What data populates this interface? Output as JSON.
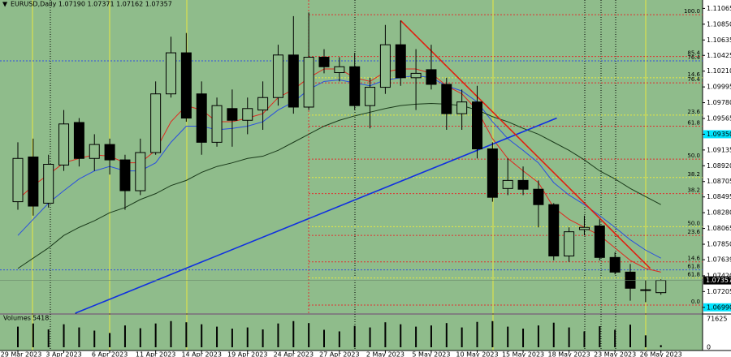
{
  "chart_data": {
    "type": "candlestick",
    "header": "EURUSD,Daily  1.07190 1.07371 1.07162 1.07357",
    "categories": [
      "29 Mar 2023",
      null,
      null,
      "3 Apr 2023",
      null,
      null,
      "6 Apr 2023",
      null,
      null,
      "11 Apr 2023",
      null,
      null,
      "14 Apr 2023",
      null,
      null,
      "19 Apr 2023",
      null,
      null,
      "24 Apr 2023",
      null,
      null,
      "27 Apr 2023",
      null,
      null,
      "2 May 2023",
      null,
      null,
      "5 May 2023",
      null,
      null,
      "10 May 2023",
      null,
      null,
      "15 May 2023",
      null,
      null,
      "18 May 2023",
      null,
      null,
      "23 May 2023",
      null,
      null,
      "26 May 2023"
    ],
    "open": [
      1.0843,
      1.0904,
      1.0841,
      1.0893,
      1.0951,
      1.0902,
      1.0921,
      1.09,
      1.0858,
      1.091,
      1.099,
      1.1046,
      1.099,
      1.0924,
      1.097,
      1.0954,
      1.0968,
      1.0985,
      1.1043,
      1.0972,
      1.104,
      1.1019,
      1.1027,
      1.0974,
      1.0999,
      1.1057,
      1.1012,
      1.1023,
      1.1003,
      1.0963,
      1.0979,
      1.0915,
      1.0861,
      1.0872,
      1.086,
      1.0839,
      1.0769,
      1.0805,
      1.081,
      1.0767,
      1.0747,
      1.0723,
      1.0719
    ],
    "high": [
      1.0924,
      1.0929,
      1.0907,
      1.0968,
      1.0957,
      1.0935,
      1.0929,
      1.0907,
      1.0929,
      1.1007,
      1.1068,
      1.1073,
      1.1007,
      1.0985,
      1.0996,
      1.0985,
      1.1007,
      1.1057,
      1.1096,
      1.1101,
      1.1051,
      1.104,
      1.1046,
      1.1012,
      1.1084,
      1.109,
      1.1051,
      1.1057,
      1.1012,
      1.0996,
      1.1001,
      1.0924,
      1.0902,
      1.0891,
      1.0872,
      1.0841,
      1.0808,
      1.0824,
      1.0819,
      1.0774,
      1.0758,
      1.0736,
      1.07371
    ],
    "low": [
      1.0832,
      1.0824,
      1.0835,
      1.0885,
      1.0891,
      1.0885,
      1.088,
      1.0832,
      1.0852,
      1.0907,
      1.0985,
      1.0952,
      1.0907,
      1.0918,
      1.0918,
      1.0935,
      1.0941,
      1.0974,
      1.0963,
      1.0968,
      1.1018,
      1.1007,
      1.0968,
      1.0943,
      1.099,
      1.1001,
      1.0968,
      1.0996,
      1.0941,
      1.0941,
      1.0902,
      1.0843,
      1.0852,
      1.0852,
      1.0808,
      1.0763,
      1.0761,
      1.0797,
      1.0763,
      1.0744,
      1.0708,
      1.0706,
      1.07162
    ],
    "close": [
      1.0902,
      1.0837,
      1.0894,
      1.0949,
      1.0902,
      1.0921,
      1.09,
      1.0858,
      1.091,
      1.099,
      1.1046,
      1.0957,
      1.0924,
      1.0974,
      1.0954,
      1.097,
      1.0985,
      1.1043,
      1.0972,
      1.104,
      1.1027,
      1.1027,
      1.0974,
      1.0999,
      1.1057,
      1.1012,
      1.1018,
      1.1003,
      1.0963,
      1.0979,
      1.0915,
      1.0849,
      1.0872,
      1.086,
      1.0839,
      1.0769,
      1.0802,
      1.0808,
      1.0767,
      1.0747,
      1.0725,
      1.0722,
      1.07357
    ],
    "bull_color": "#8fbc8b",
    "bear_color": "#000000",
    "series": [
      {
        "color": "#e0281e",
        "values": [
          1.0846,
          1.0865,
          1.088,
          1.0896,
          1.0902,
          1.0907,
          1.0905,
          1.0896,
          1.0896,
          1.0913,
          1.0952,
          1.0974,
          1.0968,
          1.0952,
          1.0952,
          1.0957,
          1.0963,
          1.0985,
          1.0996,
          1.1012,
          1.1024,
          1.1024,
          1.1012,
          1.1007,
          1.102,
          1.1024,
          1.1024,
          1.1018,
          1.1001,
          1.099,
          1.0968,
          1.0929,
          1.0902,
          1.0885,
          1.0869,
          1.0835,
          1.0819,
          1.0808,
          1.0797,
          1.078,
          1.0763,
          1.0752,
          1.0747
        ]
      },
      {
        "color": "#2a4fe0",
        "values": [
          1.0797,
          1.0819,
          1.0841,
          1.0858,
          1.0874,
          1.0885,
          1.0891,
          1.0885,
          1.0885,
          1.0896,
          1.0924,
          1.0946,
          1.0946,
          1.0941,
          1.0943,
          1.0946,
          1.0952,
          1.0968,
          1.0979,
          1.0996,
          1.1007,
          1.1009,
          1.1005,
          1.1001,
          1.1009,
          1.1012,
          1.1015,
          1.1012,
          1.1001,
          1.0994,
          1.0979,
          1.0952,
          1.0929,
          1.0913,
          1.0896,
          1.0869,
          1.0852,
          1.0839,
          1.0824,
          1.0808,
          1.0791,
          1.0777,
          1.0766
        ]
      },
      {
        "color": "#1a3a1a",
        "values": [
          1.0752,
          1.0766,
          1.078,
          1.0797,
          1.0808,
          1.0817,
          1.0828,
          1.0835,
          1.0846,
          1.0854,
          1.0865,
          1.0872,
          1.0883,
          1.0891,
          1.0896,
          1.0902,
          1.0905,
          1.0913,
          1.0924,
          1.0935,
          1.0946,
          1.0954,
          1.096,
          1.0965,
          1.097,
          1.0974,
          1.0976,
          1.0977,
          1.0976,
          1.0974,
          1.0968,
          1.0959,
          1.0952,
          1.0943,
          1.0935,
          1.0924,
          1.0913,
          1.09,
          1.0885,
          1.0874,
          1.0861,
          1.085,
          1.0839
        ]
      }
    ],
    "trendlines": [
      {
        "color": "#1030e0",
        "x": [
          3.75,
          35.2
        ],
        "y": [
          1.0691,
          1.0957
        ]
      },
      {
        "color": "#e02010",
        "x": [
          25,
          41.3
        ],
        "y": [
          1.109,
          1.0752
        ]
      }
    ],
    "levels": [
      {
        "label": "100.0",
        "value": 1.1098,
        "color": "#e03030"
      },
      {
        "label": "85.4",
        "value": 1.1041,
        "color": "#e03030"
      },
      {
        "label": "76.4",
        "value": 1.1035,
        "color": "#3050e0"
      },
      {
        "label": "14.6",
        "value": 1.1012,
        "color": "#e8e840"
      },
      {
        "label": "76.4",
        "value": 1.1005,
        "color": "#e03030"
      },
      {
        "label": "23.6",
        "value": 1.0961,
        "color": "#e8e840"
      },
      {
        "label": "61.8",
        "value": 1.0946,
        "color": "#e03030"
      },
      {
        "label": "50.0",
        "value": 1.0901,
        "color": "#e03030"
      },
      {
        "label": "38.2",
        "value": 1.0876,
        "color": "#e8e840"
      },
      {
        "label": "38.2",
        "value": 1.0854,
        "color": "#e03030"
      },
      {
        "label": "50.0",
        "value": 1.0809,
        "color": "#e8e840"
      },
      {
        "label": "23.6",
        "value": 1.0797,
        "color": "#e03030"
      },
      {
        "label": "14.6",
        "value": 1.0761,
        "color": "#e03030"
      },
      {
        "label": "61.8",
        "value": 1.075,
        "color": "#3050e0"
      },
      {
        "label": "61.8",
        "value": 1.0739,
        "color": "#e8e840"
      },
      {
        "label": "0.0",
        "value": 1.0702,
        "color": "#e03030"
      }
    ],
    "ylim": [
      1.0691,
      1.1118
    ],
    "yticks": [
      {
        "value": 1.11065,
        "label": "1.11065"
      },
      {
        "value": 1.1085,
        "label": "1.10850"
      },
      {
        "value": 1.10635,
        "label": "1.10635"
      },
      {
        "value": 1.10425,
        "label": "1.10425"
      },
      {
        "value": 1.1021,
        "label": "1.10210"
      },
      {
        "value": 1.09995,
        "label": "1.09995"
      },
      {
        "value": 1.0978,
        "label": "1.09780"
      },
      {
        "value": 1.09565,
        "label": "1.09565"
      },
      {
        "value": 1.0935,
        "label": "1.09350"
      },
      {
        "value": 1.09135,
        "label": "1.09135"
      },
      {
        "value": 1.0892,
        "label": "1.08920"
      },
      {
        "value": 1.08705,
        "label": "1.08705"
      },
      {
        "value": 1.08495,
        "label": "1.08495"
      },
      {
        "value": 1.0828,
        "label": "1.08280"
      },
      {
        "value": 1.08065,
        "label": "1.08065"
      },
      {
        "value": 1.0785,
        "label": "1.07850"
      },
      {
        "value": 1.07639,
        "label": "1.07639"
      },
      {
        "value": 1.0742,
        "label": "1.07420"
      },
      {
        "value": 1.07205,
        "label": "1.07205"
      },
      {
        "value": 1.0699,
        "label": "1.06990"
      }
    ],
    "price_markers": [
      {
        "value": 1.0935,
        "color": "#00e5ff"
      },
      {
        "value": 1.0699,
        "color": "#00e5ff"
      }
    ],
    "current_price": {
      "value": 1.07357,
      "label": "1.07357"
    },
    "volume_label": "Volumes",
    "volumes": [
      52000,
      60000,
      45000,
      58000,
      50000,
      42000,
      36000,
      55000,
      48000,
      60000,
      66000,
      63000,
      58000,
      52000,
      47000,
      50000,
      45000,
      60000,
      66000,
      61000,
      44000,
      40000,
      54000,
      50000,
      63000,
      58000,
      52000,
      55000,
      61000,
      50000,
      64000,
      66000,
      52000,
      47000,
      55000,
      62000,
      50000,
      40000,
      53000,
      44000,
      57000,
      30000,
      5418
    ],
    "vlim": [
      0,
      71625
    ],
    "vticks": [
      71625,
      0
    ]
  }
}
